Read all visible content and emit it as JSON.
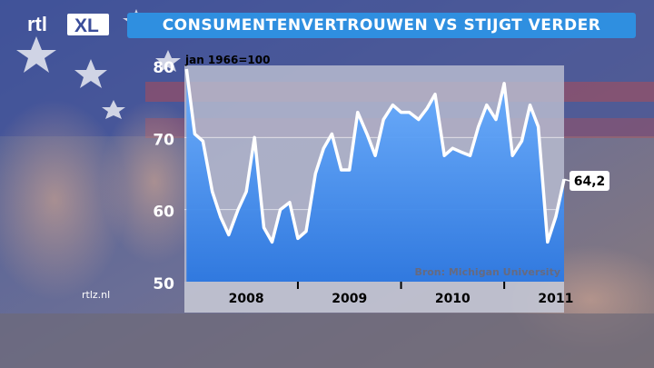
{
  "branding": {
    "logo_text_rtl": "rtl",
    "logo_text_xl": "XL",
    "site": "rtlz.nl"
  },
  "header": {
    "title": "CONSUMENTENVERTROUWEN VS STIJGT VERDER"
  },
  "colors": {
    "title_bar": "#2f8fe0",
    "area_fill_top": "#5aa6ff",
    "area_fill_bottom": "#2f7ee6",
    "plot_bg": "#b9bdd0",
    "line": "#ffffff"
  },
  "chart_data": {
    "type": "area",
    "subtitle": "jan 1966=100",
    "source": "Bron: Michigan University",
    "ylim": [
      50,
      80
    ],
    "yticks": [
      50,
      60,
      70,
      80
    ],
    "grid": true,
    "year_labels": [
      "2008",
      "2009",
      "2010",
      "2011"
    ],
    "x_start": 2007.9,
    "x_end": 2011.5,
    "last_value_label": "64,2",
    "points": [
      [
        2007.92,
        79.5
      ],
      [
        2008.0,
        70.5
      ],
      [
        2008.08,
        69.5
      ],
      [
        2008.17,
        62.5
      ],
      [
        2008.25,
        59.0
      ],
      [
        2008.33,
        56.5
      ],
      [
        2008.42,
        60.0
      ],
      [
        2008.5,
        62.5
      ],
      [
        2008.58,
        70.0
      ],
      [
        2008.67,
        57.5
      ],
      [
        2008.75,
        55.5
      ],
      [
        2008.83,
        60.0
      ],
      [
        2008.92,
        61.0
      ],
      [
        2009.0,
        56.0
      ],
      [
        2009.08,
        57.0
      ],
      [
        2009.17,
        65.0
      ],
      [
        2009.25,
        68.5
      ],
      [
        2009.33,
        70.5
      ],
      [
        2009.42,
        65.5
      ],
      [
        2009.5,
        65.5
      ],
      [
        2009.58,
        73.5
      ],
      [
        2009.67,
        70.5
      ],
      [
        2009.75,
        67.5
      ],
      [
        2009.83,
        72.5
      ],
      [
        2009.92,
        74.5
      ],
      [
        2010.0,
        73.5
      ],
      [
        2010.08,
        73.5
      ],
      [
        2010.17,
        72.5
      ],
      [
        2010.25,
        74.0
      ],
      [
        2010.33,
        76.0
      ],
      [
        2010.42,
        67.5
      ],
      [
        2010.5,
        68.5
      ],
      [
        2010.58,
        68.0
      ],
      [
        2010.67,
        67.5
      ],
      [
        2010.75,
        71.5
      ],
      [
        2010.83,
        74.5
      ],
      [
        2010.92,
        72.5
      ],
      [
        2011.0,
        77.5
      ],
      [
        2011.08,
        67.5
      ],
      [
        2011.17,
        69.5
      ],
      [
        2011.25,
        74.5
      ],
      [
        2011.33,
        71.5
      ],
      [
        2011.42,
        55.5
      ],
      [
        2011.5,
        59.0
      ],
      [
        2011.58,
        64.2
      ]
    ]
  }
}
